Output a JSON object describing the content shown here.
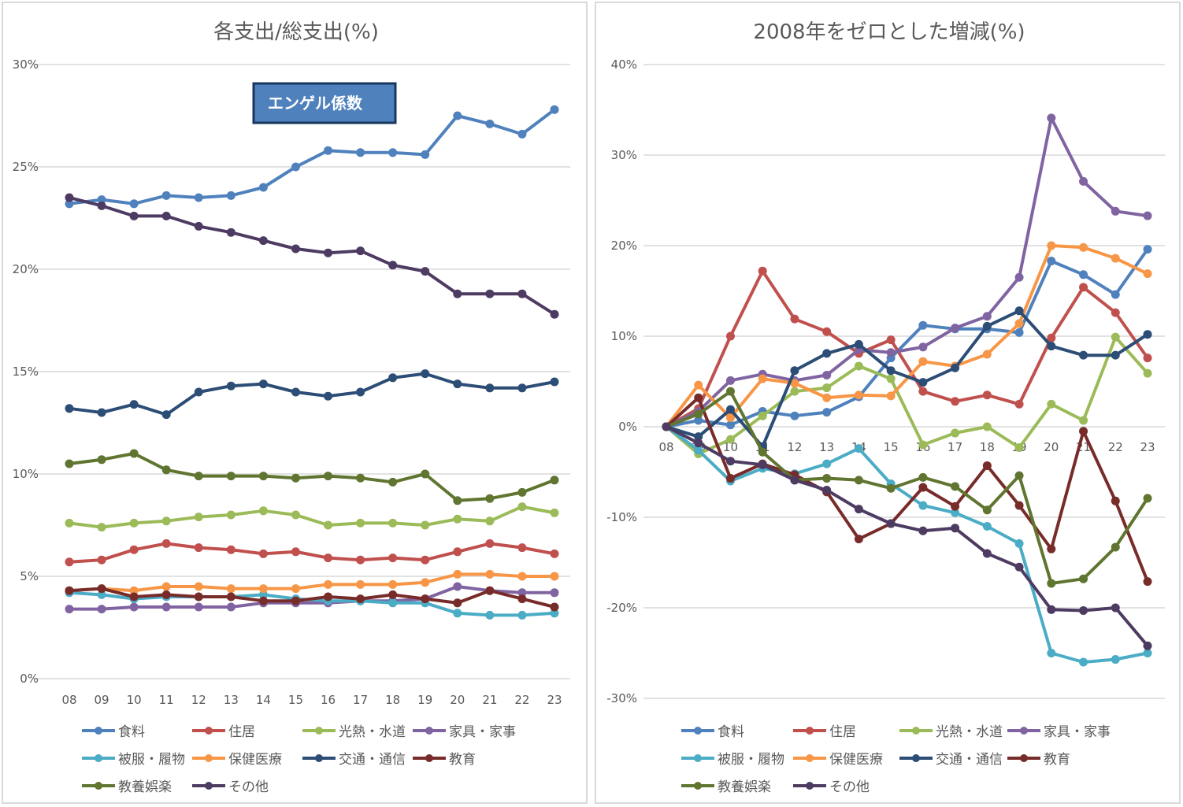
{
  "series_names": [
    "食料",
    "住居",
    "光熱・水道",
    "家具・家事",
    "被服・履物",
    "保健医療",
    "交通・通信",
    "教育",
    "教養娯楽",
    "その他"
  ],
  "series_colors": [
    "#4f81bd",
    "#c0504d",
    "#9bbb59",
    "#8064a2",
    "#4bacc6",
    "#f79646",
    "#2c4d75",
    "#772c2a",
    "#5f7530",
    "#4d3b62"
  ],
  "chart_data": [
    {
      "type": "line",
      "title": "各支出/総支出(%)",
      "xlabel": "",
      "ylabel": "",
      "categories": [
        "08",
        "09",
        "10",
        "11",
        "12",
        "13",
        "14",
        "15",
        "16",
        "17",
        "18",
        "19",
        "20",
        "21",
        "22",
        "23"
      ],
      "ylim": [
        0,
        30
      ],
      "yticks": [
        "0%",
        "5%",
        "10%",
        "15%",
        "20%",
        "25%",
        "30%"
      ],
      "grid": true,
      "legend": "bottom",
      "annotation": "エンゲル係数",
      "series": [
        {
          "name": "食料",
          "values": [
            23.2,
            23.4,
            23.2,
            23.6,
            23.5,
            23.6,
            24.0,
            25.0,
            25.8,
            25.7,
            25.7,
            25.6,
            27.5,
            27.1,
            26.6,
            27.8
          ]
        },
        {
          "name": "住居",
          "values": [
            5.7,
            5.8,
            6.3,
            6.6,
            6.4,
            6.3,
            6.1,
            6.2,
            5.9,
            5.8,
            5.9,
            5.8,
            6.2,
            6.6,
            6.4,
            6.1
          ]
        },
        {
          "name": "光熱・水道",
          "values": [
            7.6,
            7.4,
            7.6,
            7.7,
            7.9,
            8.0,
            8.2,
            8.0,
            7.5,
            7.6,
            7.6,
            7.5,
            7.8,
            7.7,
            8.4,
            8.1
          ]
        },
        {
          "name": "家具・家事",
          "values": [
            3.4,
            3.4,
            3.5,
            3.5,
            3.5,
            3.5,
            3.7,
            3.7,
            3.7,
            3.8,
            3.8,
            3.9,
            4.5,
            4.3,
            4.2,
            4.2
          ]
        },
        {
          "name": "被服・履物",
          "values": [
            4.2,
            4.1,
            3.9,
            4.0,
            4.0,
            4.0,
            4.1,
            3.9,
            3.8,
            3.8,
            3.7,
            3.7,
            3.2,
            3.1,
            3.1,
            3.2
          ]
        },
        {
          "name": "保健医療",
          "values": [
            4.3,
            4.4,
            4.3,
            4.5,
            4.5,
            4.4,
            4.4,
            4.4,
            4.6,
            4.6,
            4.6,
            4.7,
            5.1,
            5.1,
            5.0,
            5.0
          ]
        },
        {
          "name": "交通・通信",
          "values": [
            13.2,
            13.0,
            13.4,
            12.9,
            14.0,
            14.3,
            14.4,
            14.0,
            13.8,
            14.0,
            14.7,
            14.9,
            14.4,
            14.2,
            14.2,
            14.5
          ]
        },
        {
          "name": "教育",
          "values": [
            4.3,
            4.4,
            4.0,
            4.1,
            4.0,
            4.0,
            3.8,
            3.8,
            4.0,
            3.9,
            4.1,
            3.9,
            3.7,
            4.3,
            3.9,
            3.5
          ]
        },
        {
          "name": "教養娯楽",
          "values": [
            10.5,
            10.7,
            11.0,
            10.2,
            9.9,
            9.9,
            9.9,
            9.8,
            9.9,
            9.8,
            9.6,
            10.0,
            8.7,
            8.8,
            9.1,
            9.7
          ]
        },
        {
          "name": "その他",
          "values": [
            23.5,
            23.1,
            22.6,
            22.6,
            22.1,
            21.8,
            21.4,
            21.0,
            20.8,
            20.9,
            20.2,
            19.9,
            18.8,
            18.8,
            18.8,
            17.8
          ]
        }
      ]
    },
    {
      "type": "line",
      "title": "2008年をゼロとした増減(%)",
      "xlabel": "",
      "ylabel": "",
      "categories": [
        "08",
        "09",
        "10",
        "11",
        "12",
        "13",
        "14",
        "15",
        "16",
        "17",
        "18",
        "19",
        "20",
        "21",
        "22",
        "23"
      ],
      "ylim": [
        -30,
        40
      ],
      "yticks": [
        "-30%",
        "-20%",
        "-10%",
        "0%",
        "10%",
        "20%",
        "30%",
        "40%"
      ],
      "grid": true,
      "legend": "bottom",
      "series": [
        {
          "name": "食料",
          "values": [
            0,
            0.7,
            0.2,
            1.7,
            1.2,
            1.6,
            3.3,
            7.6,
            11.2,
            10.8,
            10.8,
            10.4,
            18.3,
            16.8,
            14.6,
            19.6
          ]
        },
        {
          "name": "住居",
          "values": [
            0,
            2.0,
            10.0,
            17.2,
            11.9,
            10.5,
            8.1,
            9.6,
            3.9,
            2.8,
            3.5,
            2.5,
            9.8,
            15.4,
            12.6,
            7.6
          ]
        },
        {
          "name": "光熱・水道",
          "values": [
            0,
            -3.0,
            -1.4,
            1.2,
            3.9,
            4.3,
            6.7,
            5.3,
            -2.0,
            -0.7,
            0.0,
            -2.3,
            2.5,
            0.7,
            9.9,
            5.9
          ]
        },
        {
          "name": "家具・家事",
          "values": [
            0,
            1.7,
            5.1,
            5.8,
            5.1,
            5.7,
            8.5,
            8.2,
            8.8,
            10.9,
            12.2,
            16.5,
            34.1,
            27.1,
            23.8,
            23.3
          ]
        },
        {
          "name": "被服・履物",
          "values": [
            0,
            -2.6,
            -6.0,
            -4.6,
            -5.2,
            -4.1,
            -2.4,
            -6.3,
            -8.7,
            -9.5,
            -11.0,
            -12.9,
            -25.0,
            -26.0,
            -25.7,
            -25.0
          ]
        },
        {
          "name": "保健医療",
          "values": [
            0,
            4.6,
            1.0,
            5.3,
            4.8,
            3.2,
            3.5,
            3.4,
            7.2,
            6.7,
            8.0,
            11.4,
            20.0,
            19.8,
            18.6,
            16.9
          ]
        },
        {
          "name": "交通・通信",
          "values": [
            0,
            -1.1,
            1.9,
            -2.2,
            6.2,
            8.1,
            9.1,
            6.2,
            4.9,
            6.5,
            11.1,
            12.8,
            8.9,
            7.9,
            7.9,
            10.2
          ]
        },
        {
          "name": "教育",
          "values": [
            0,
            3.2,
            -5.7,
            -4.1,
            -5.3,
            -7.2,
            -12.4,
            -10.7,
            -6.7,
            -8.8,
            -4.3,
            -8.7,
            -13.5,
            -0.5,
            -8.2,
            -17.1
          ]
        },
        {
          "name": "教養娯楽",
          "values": [
            0,
            1.4,
            3.9,
            -2.8,
            -5.9,
            -5.7,
            -5.9,
            -6.8,
            -5.6,
            -6.6,
            -9.2,
            -5.4,
            -17.3,
            -16.8,
            -13.3,
            -7.9
          ]
        },
        {
          "name": "その他",
          "values": [
            0,
            -1.8,
            -3.8,
            -4.2,
            -5.9,
            -7.0,
            -9.1,
            -10.7,
            -11.5,
            -11.2,
            -14.0,
            -15.5,
            -20.2,
            -20.3,
            -20.0,
            -24.2
          ]
        }
      ]
    }
  ]
}
